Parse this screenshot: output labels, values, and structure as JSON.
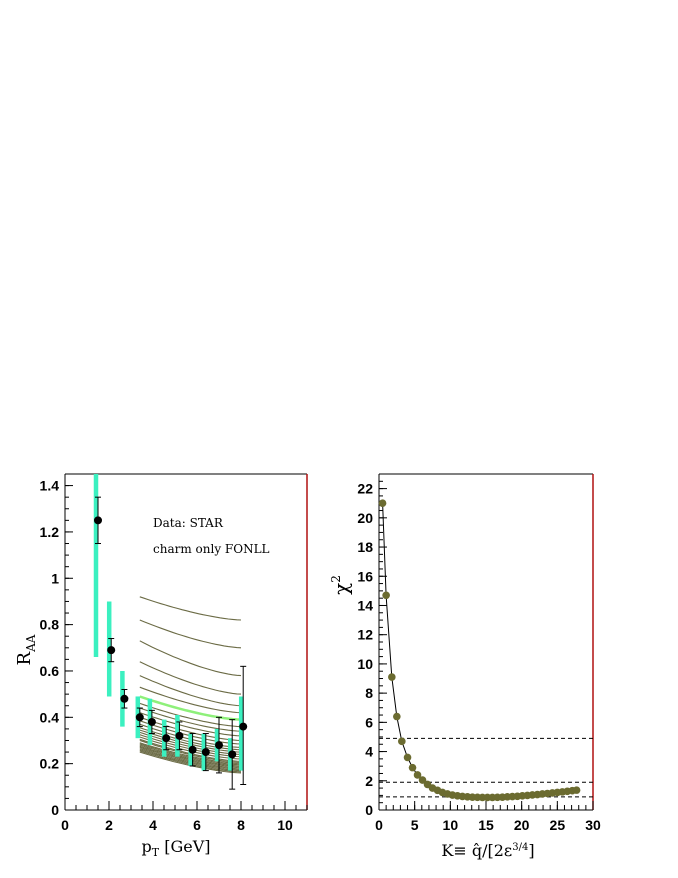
{
  "chart_data": [
    {
      "type": "scatter",
      "title": "",
      "xlabel_main": "p",
      "xlabel_sub": "T",
      "xlabel_rest": " [GeV]",
      "ylabel_main": "R",
      "ylabel_sub": "AA",
      "xlim": [
        0,
        11
      ],
      "ylim": [
        0,
        1.45
      ],
      "xticks": [
        0,
        2,
        4,
        6,
        8,
        10
      ],
      "xtick_labels": [
        "0",
        "2",
        "4",
        "6",
        "8",
        "10"
      ],
      "yticks": [
        0,
        0.2,
        0.4,
        0.6,
        0.8,
        1.0,
        1.2,
        1.4
      ],
      "ytick_labels": [
        "0",
        "0.2",
        "0.4",
        "0.6",
        "0.8",
        "1",
        "1.2",
        "1.4"
      ],
      "annotations": [
        "Data: STAR",
        "charm only FONLL"
      ],
      "data_color": "#000000",
      "sys_color": "#3bf0c0",
      "data": {
        "x": [
          1.5,
          2.1,
          2.7,
          3.4,
          3.95,
          4.6,
          5.2,
          5.8,
          6.4,
          7.0,
          7.6,
          8.1
        ],
        "y": [
          1.25,
          0.69,
          0.48,
          0.4,
          0.38,
          0.31,
          0.32,
          0.26,
          0.25,
          0.28,
          0.24,
          0.36
        ],
        "err_lo": [
          0.1,
          0.05,
          0.04,
          0.04,
          0.05,
          0.05,
          0.06,
          0.07,
          0.08,
          0.12,
          0.15,
          0.25
        ],
        "err_hi": [
          0.1,
          0.05,
          0.04,
          0.04,
          0.05,
          0.05,
          0.06,
          0.07,
          0.08,
          0.12,
          0.15,
          0.26
        ],
        "sys_lo": [
          0.59,
          0.2,
          0.12,
          0.09,
          0.1,
          0.08,
          0.09,
          0.07,
          0.08,
          0.07,
          0.07,
          0.19
        ],
        "sys_hi": [
          0.35,
          0.21,
          0.12,
          0.09,
          0.1,
          0.08,
          0.09,
          0.07,
          0.08,
          0.07,
          0.07,
          0.13
        ]
      },
      "model_curves": {
        "x_range": [
          3.4,
          8.0
        ],
        "color": "#6b6b45",
        "highlight_color": "#8ef07a",
        "highlight_index": 6,
        "start_values": [
          0.92,
          0.82,
          0.73,
          0.64,
          0.58,
          0.53,
          0.49,
          0.46,
          0.44,
          0.42,
          0.4,
          0.385,
          0.37,
          0.355,
          0.345,
          0.335,
          0.325,
          0.315,
          0.305,
          0.3,
          0.29,
          0.285,
          0.28,
          0.275,
          0.27,
          0.265,
          0.26,
          0.255,
          0.25
        ],
        "end_values": [
          0.82,
          0.7,
          0.58,
          0.5,
          0.45,
          0.42,
          0.39,
          0.36,
          0.34,
          0.32,
          0.3,
          0.285,
          0.27,
          0.26,
          0.25,
          0.24,
          0.23,
          0.22,
          0.21,
          0.205,
          0.2,
          0.195,
          0.19,
          0.185,
          0.18,
          0.175,
          0.17,
          0.165,
          0.16
        ]
      }
    },
    {
      "type": "line",
      "title": "",
      "xlabel": "K≡ q̂/[2ε",
      "xlabel_sup": "3/4",
      "xlabel_end": "]",
      "ylabel_main": "χ",
      "ylabel_sup": "2",
      "xlim": [
        0,
        30
      ],
      "ylim": [
        0,
        23
      ],
      "xticks": [
        0,
        5,
        10,
        15,
        20,
        25,
        30
      ],
      "xtick_labels": [
        "0",
        "5",
        "10",
        "15",
        "20",
        "25",
        "30"
      ],
      "yticks": [
        0,
        2,
        4,
        6,
        8,
        10,
        12,
        14,
        16,
        18,
        20,
        22
      ],
      "ytick_labels": [
        "0",
        "2",
        "4",
        "6",
        "8",
        "10",
        "12",
        "14",
        "16",
        "18",
        "20",
        "22"
      ],
      "color": "#6b6b30",
      "reference_lines": [
        0.9,
        1.9,
        4.9
      ],
      "x": [
        0.5,
        1.0,
        1.8,
        2.5,
        3.2,
        4.0,
        4.7,
        5.4,
        6.1,
        6.8,
        7.5,
        8.2,
        8.9,
        9.6,
        10.3,
        11.0,
        11.7,
        12.4,
        13.1,
        13.8,
        14.5,
        15.2,
        15.9,
        16.6,
        17.3,
        18.0,
        18.7,
        19.4,
        20.1,
        20.8,
        21.5,
        22.2,
        22.9,
        23.6,
        24.3,
        25.0,
        25.7,
        26.4,
        27.1,
        27.7
      ],
      "y": [
        21.0,
        14.7,
        9.1,
        6.4,
        4.7,
        3.6,
        2.9,
        2.4,
        2.05,
        1.75,
        1.5,
        1.35,
        1.2,
        1.1,
        1.02,
        0.97,
        0.93,
        0.9,
        0.88,
        0.87,
        0.86,
        0.86,
        0.86,
        0.87,
        0.88,
        0.9,
        0.92,
        0.94,
        0.97,
        1.0,
        1.03,
        1.06,
        1.1,
        1.13,
        1.17,
        1.2,
        1.24,
        1.28,
        1.32,
        1.36
      ]
    }
  ]
}
